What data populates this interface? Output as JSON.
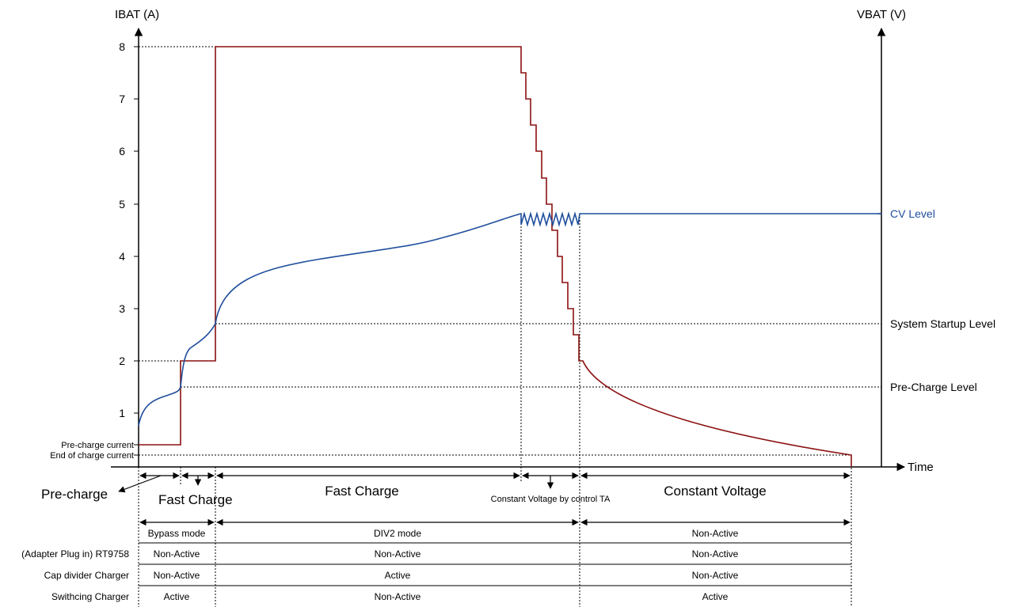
{
  "axes": {
    "left_title": "IBAT (A)",
    "right_title": "VBAT (V)",
    "x_title": "Time",
    "y_ticks": [
      "1",
      "2",
      "3",
      "4",
      "5",
      "6",
      "7",
      "8"
    ]
  },
  "levels": {
    "pre_charge_current": "Pre-charge current",
    "end_of_charge_current": "End of charge current",
    "cv_level": "CV Level",
    "system_startup": "System Startup Level",
    "pre_charge_level": "Pre-Charge Level"
  },
  "phases": {
    "pre_charge": "Pre-charge",
    "fast_charge_1": "Fast Charge",
    "fast_charge_2": "Fast Charge",
    "cv_by_ta": "Constant Voltage by control TA",
    "constant_voltage": "Constant Voltage"
  },
  "table": {
    "mode_row": [
      "Bypass mode",
      "DIV2 mode",
      "Non-Active"
    ],
    "rows": [
      {
        "label": "(Adapter Plug in) RT9758",
        "cells": [
          "Non-Active",
          "Non-Active",
          "Non-Active"
        ]
      },
      {
        "label": "Cap divider Charger",
        "cells": [
          "Non-Active",
          "Active",
          "Non-Active"
        ]
      },
      {
        "label": "Swithcing Charger",
        "cells": [
          "Active",
          "Non-Active",
          "Active"
        ]
      }
    ]
  },
  "colors": {
    "current_curve": "#8b1010",
    "voltage_curve": "#1f4e9c",
    "cv_label": "#1f4e9c"
  }
}
